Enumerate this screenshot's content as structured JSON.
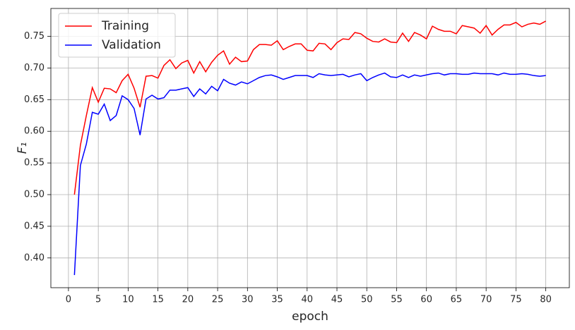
{
  "chart_data": {
    "type": "line",
    "xlabel": "epoch",
    "ylabel": "F₁",
    "x": [
      1,
      2,
      3,
      4,
      5,
      6,
      7,
      8,
      9,
      10,
      11,
      12,
      13,
      14,
      15,
      16,
      17,
      18,
      19,
      20,
      21,
      22,
      23,
      24,
      25,
      26,
      27,
      28,
      29,
      30,
      31,
      32,
      33,
      34,
      35,
      36,
      37,
      38,
      39,
      40,
      41,
      42,
      43,
      44,
      45,
      46,
      47,
      48,
      49,
      50,
      51,
      52,
      53,
      54,
      55,
      56,
      57,
      58,
      59,
      60,
      61,
      62,
      63,
      64,
      65,
      66,
      67,
      68,
      69,
      70,
      71,
      72,
      73,
      74,
      75,
      76,
      77,
      78,
      79,
      80
    ],
    "series": [
      {
        "name": "Training",
        "color": "#ff0000",
        "values": [
          0.5,
          0.578,
          0.625,
          0.669,
          0.646,
          0.668,
          0.667,
          0.661,
          0.68,
          0.69,
          0.668,
          0.638,
          0.687,
          0.688,
          0.684,
          0.704,
          0.713,
          0.699,
          0.708,
          0.712,
          0.692,
          0.71,
          0.694,
          0.709,
          0.72,
          0.727,
          0.706,
          0.717,
          0.71,
          0.711,
          0.729,
          0.737,
          0.737,
          0.736,
          0.743,
          0.729,
          0.734,
          0.738,
          0.738,
          0.728,
          0.727,
          0.739,
          0.738,
          0.729,
          0.74,
          0.746,
          0.745,
          0.756,
          0.754,
          0.747,
          0.742,
          0.741,
          0.746,
          0.741,
          0.74,
          0.755,
          0.742,
          0.756,
          0.752,
          0.746,
          0.766,
          0.761,
          0.758,
          0.758,
          0.754,
          0.767,
          0.765,
          0.763,
          0.755,
          0.767,
          0.752,
          0.761,
          0.768,
          0.768,
          0.772,
          0.765,
          0.769,
          0.771,
          0.769,
          0.774
        ]
      },
      {
        "name": "Validation",
        "color": "#0000ff",
        "values": [
          0.373,
          0.546,
          0.58,
          0.63,
          0.627,
          0.643,
          0.617,
          0.625,
          0.656,
          0.65,
          0.636,
          0.594,
          0.651,
          0.657,
          0.651,
          0.653,
          0.665,
          0.665,
          0.667,
          0.669,
          0.655,
          0.667,
          0.659,
          0.671,
          0.664,
          0.682,
          0.676,
          0.673,
          0.678,
          0.675,
          0.68,
          0.685,
          0.688,
          0.689,
          0.686,
          0.682,
          0.685,
          0.688,
          0.688,
          0.688,
          0.685,
          0.691,
          0.689,
          0.688,
          0.689,
          0.69,
          0.686,
          0.689,
          0.691,
          0.68,
          0.685,
          0.689,
          0.692,
          0.686,
          0.685,
          0.689,
          0.685,
          0.689,
          0.687,
          0.689,
          0.691,
          0.692,
          0.689,
          0.691,
          0.691,
          0.69,
          0.69,
          0.692,
          0.691,
          0.691,
          0.691,
          0.689,
          0.692,
          0.69,
          0.69,
          0.691,
          0.69,
          0.688,
          0.687,
          0.688
        ]
      }
    ],
    "xlim": [
      -2.95,
      83.95
    ],
    "ylim": [
      0.353,
      0.794
    ],
    "xticks": [
      0,
      5,
      10,
      15,
      20,
      25,
      30,
      35,
      40,
      45,
      50,
      55,
      60,
      65,
      70,
      75,
      80
    ],
    "yticks": [
      {
        "value": 0.4,
        "label": "0.40"
      },
      0.45,
      {
        "value": 0.5,
        "label": "0.50"
      },
      0.55,
      {
        "value": 0.6,
        "label": "0.60"
      },
      0.65,
      {
        "value": 0.7,
        "label": "0.70"
      },
      0.75
    ],
    "grid": true,
    "legend": "upper-left"
  }
}
